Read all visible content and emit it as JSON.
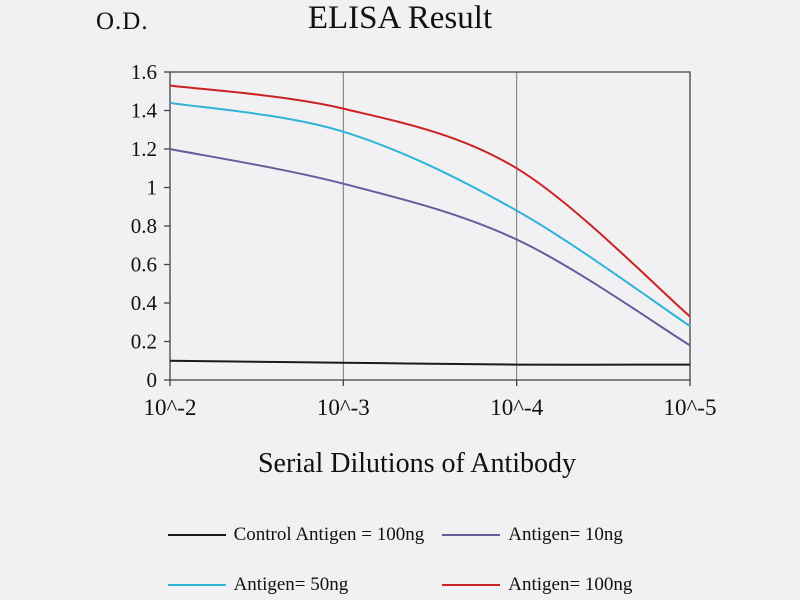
{
  "chart_data": {
    "type": "line",
    "title": "ELISA Result",
    "od_label": "O.D.",
    "xlabel": "Serial Dilutions of Antibody",
    "categories": [
      "10^-2",
      "10^-3",
      "10^-4",
      "10^-5"
    ],
    "y_ticks": [
      "0",
      "0.2",
      "0.4",
      "0.6",
      "0.8",
      "1",
      "1.2",
      "1.4",
      "1.6"
    ],
    "ylim": [
      0,
      1.6
    ],
    "grid": "vertical-only",
    "legend_position": "bottom",
    "axis_color": "#444444",
    "background_color": "#f1f0f3",
    "series": [
      {
        "name": "Control Antigen = 100ng",
        "color": "#1a1a1a",
        "values": [
          0.1,
          0.09,
          0.08,
          0.08
        ]
      },
      {
        "name": "Antigen= 10ng",
        "color": "#6a5a9d",
        "values": [
          1.2,
          1.02,
          0.73,
          0.18
        ]
      },
      {
        "name": "Antigen= 50ng",
        "color": "#2fb4d8",
        "values": [
          1.44,
          1.29,
          0.88,
          0.28
        ]
      },
      {
        "name": "Antigen= 100ng",
        "color": "#cc2222",
        "values": [
          1.53,
          1.41,
          1.1,
          0.33
        ]
      }
    ]
  }
}
